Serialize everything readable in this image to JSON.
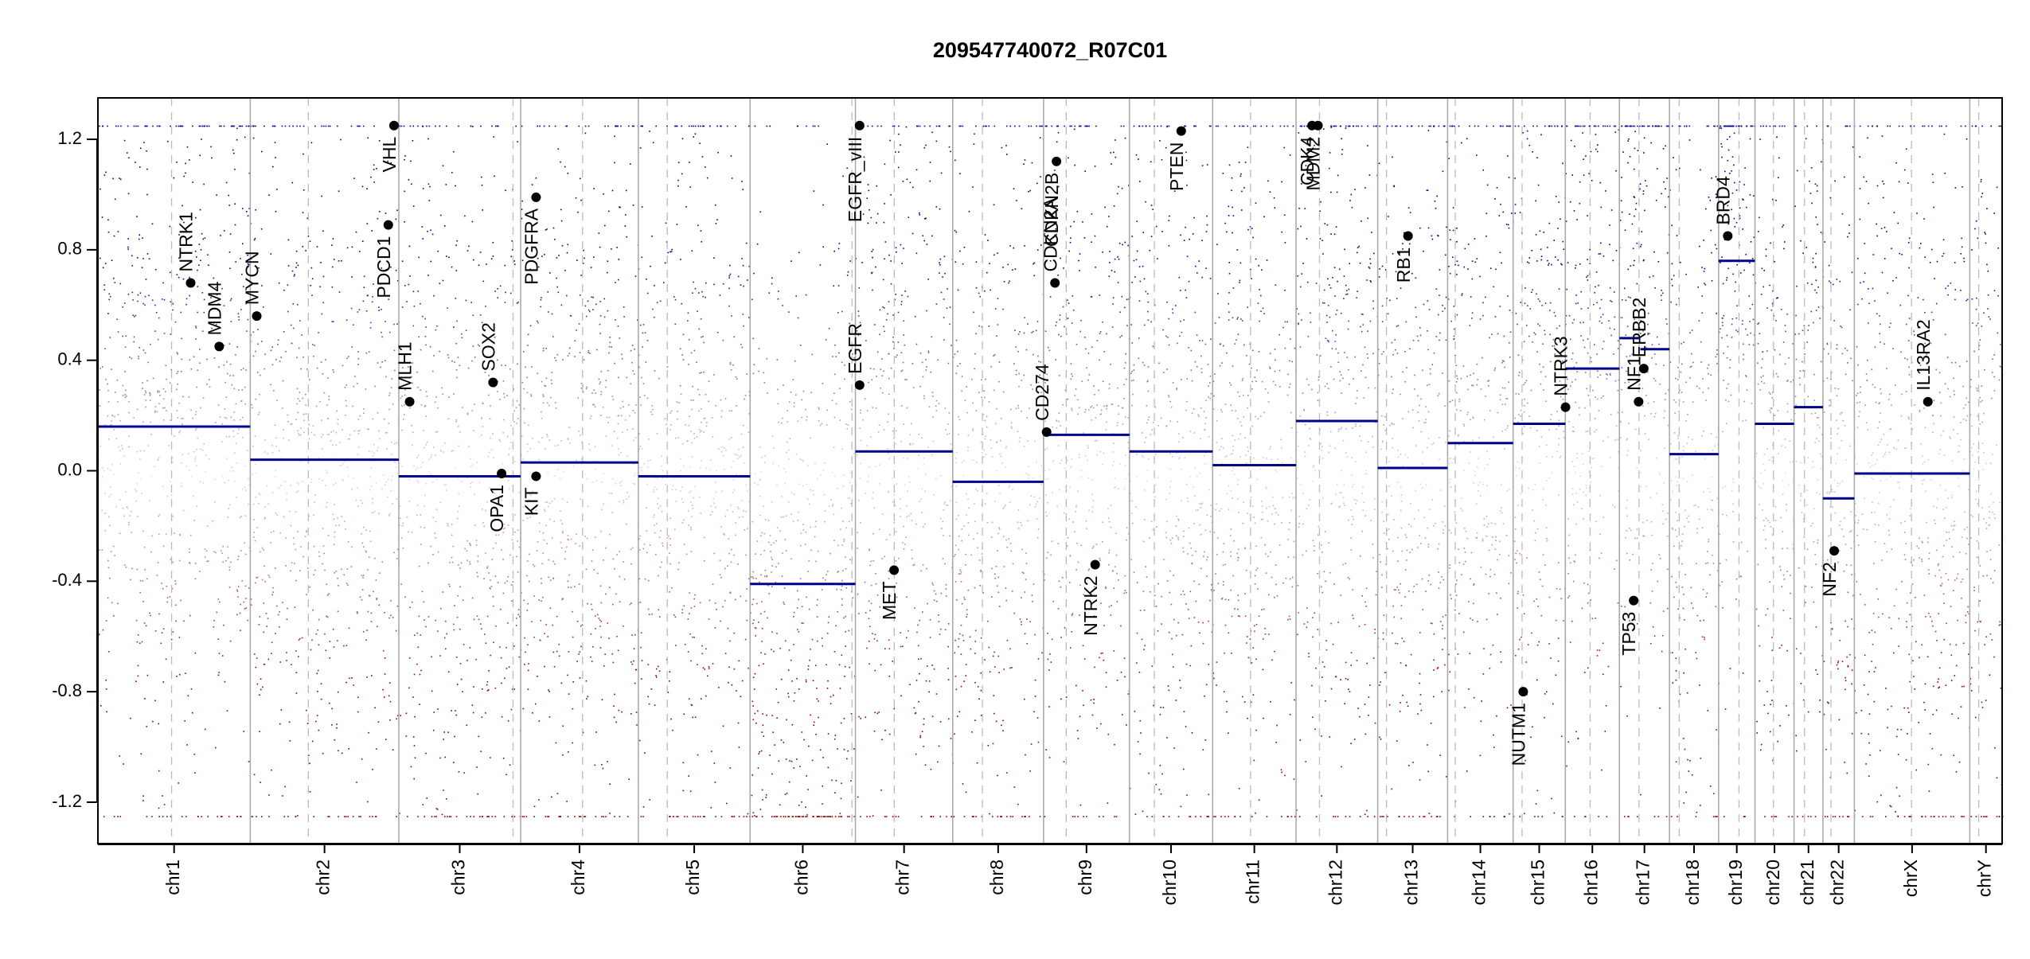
{
  "chart_data": {
    "type": "scatter",
    "title": "209547740072_R07C01",
    "xlabel": "",
    "ylabel": "",
    "ylim": [
      -1.35,
      1.35
    ],
    "yticks": [
      -1.2,
      -0.8,
      -0.4,
      0.0,
      0.4,
      0.8,
      1.2
    ],
    "ytick_labels": [
      "-1.2",
      "-0.8",
      "-0.4",
      "0.0",
      "0.4",
      "0.8",
      "1.2"
    ],
    "xlim": [
      0,
      1
    ],
    "point_clip": [
      -1.25,
      1.25
    ],
    "colors": {
      "gain": "#00008B",
      "loss": "#8B0000",
      "segment": "#00008B",
      "gene_point": "#000000",
      "chrom_boundary": "#AAAAAA",
      "centromere": "#BBBBBB",
      "axis": "#000000"
    },
    "chromosomes": [
      {
        "name": "chr1",
        "start": 0.0,
        "end": 0.08,
        "centromere": 0.0387,
        "segment": 0.16
      },
      {
        "name": "chr2",
        "start": 0.08,
        "end": 0.158,
        "centromere": 0.1105,
        "segment": 0.04
      },
      {
        "name": "chr3",
        "start": 0.158,
        "end": 0.222,
        "centromere": 0.218,
        "segment": -0.02
      },
      {
        "name": "chr4",
        "start": 0.222,
        "end": 0.2838,
        "centromere": 0.2545,
        "segment": 0.03
      },
      {
        "name": "chr5",
        "start": 0.2838,
        "end": 0.3425,
        "centromere": 0.299,
        "segment": -0.02
      },
      {
        "name": "chr6",
        "start": 0.3425,
        "end": 0.3978,
        "centromere": 0.396,
        "segment": -0.41
      },
      {
        "name": "chr7",
        "start": 0.3978,
        "end": 0.4489,
        "centromere": 0.4182,
        "segment": 0.07
      },
      {
        "name": "chr8",
        "start": 0.4489,
        "end": 0.4966,
        "centromere": 0.4645,
        "segment": -0.04
      },
      {
        "name": "chr9",
        "start": 0.4966,
        "end": 0.5417,
        "centromere": 0.5085,
        "segment": 0.13
      },
      {
        "name": "chr10",
        "start": 0.5417,
        "end": 0.5854,
        "centromere": 0.5548,
        "segment": 0.07
      },
      {
        "name": "chr11",
        "start": 0.5854,
        "end": 0.6292,
        "centromere": 0.6053,
        "segment": 0.02
      },
      {
        "name": "chr12",
        "start": 0.6292,
        "end": 0.6721,
        "centromere": 0.6415,
        "segment": 0.18
      },
      {
        "name": "chr13",
        "start": 0.6721,
        "end": 0.7088,
        "centromere": 0.6767,
        "segment": 0.01
      },
      {
        "name": "chr14",
        "start": 0.7088,
        "end": 0.7432,
        "centromere": 0.7128,
        "segment": 0.1
      },
      {
        "name": "chr15",
        "start": 0.7432,
        "end": 0.7706,
        "centromere": 0.7479,
        "segment": 0.17
      },
      {
        "name": "chr16",
        "start": 0.7706,
        "end": 0.799,
        "centromere": 0.7836,
        "segment": 0.37
      },
      {
        "name": "chr17",
        "start": 0.799,
        "end": 0.8253,
        "centromere": 0.8093,
        "segment": 0.47
      },
      {
        "name": "chr18",
        "start": 0.8253,
        "end": 0.8511,
        "centromere": 0.8304,
        "segment": 0.06
      },
      {
        "name": "chr19",
        "start": 0.8511,
        "end": 0.8702,
        "centromere": 0.8618,
        "segment": 0.76
      },
      {
        "name": "chr20",
        "start": 0.8702,
        "end": 0.8907,
        "centromere": 0.8799,
        "segment": 0.17
      },
      {
        "name": "chr21",
        "start": 0.8907,
        "end": 0.9059,
        "centromere": 0.8962,
        "segment": 0.23
      },
      {
        "name": "chr22",
        "start": 0.9059,
        "end": 0.9224,
        "centromere": 0.9101,
        "segment": -0.1
      },
      {
        "name": "chrX",
        "start": 0.9224,
        "end": 0.983,
        "centromere": 0.9524,
        "segment": -0.01
      },
      {
        "name": "chrY",
        "start": 0.983,
        "end": 1.0,
        "centromere": 0.9877,
        "segment": null
      }
    ],
    "segments_extra": [
      {
        "x0": 0.799,
        "x1": 0.81,
        "y": 0.48
      },
      {
        "x0": 0.81,
        "x1": 0.8253,
        "y": 0.44
      }
    ],
    "genes": [
      {
        "name": "NTRK1",
        "x": 0.0487,
        "y": 0.68,
        "label_side": "above"
      },
      {
        "name": "MDM4",
        "x": 0.0637,
        "y": 0.45,
        "label_side": "above"
      },
      {
        "name": "MYCN",
        "x": 0.0834,
        "y": 0.56,
        "label_side": "above"
      },
      {
        "name": "PDCD1",
        "x": 0.1525,
        "y": 0.89,
        "label_side": "below"
      },
      {
        "name": "VHL",
        "x": 0.1555,
        "y": 1.25,
        "label_side": "below"
      },
      {
        "name": "MLH1",
        "x": 0.1637,
        "y": 0.25,
        "label_side": "above"
      },
      {
        "name": "SOX2",
        "x": 0.2075,
        "y": 0.32,
        "label_side": "above"
      },
      {
        "name": "OPA1",
        "x": 0.212,
        "y": -0.01,
        "label_side": "below"
      },
      {
        "name": "PDGFRA",
        "x": 0.2301,
        "y": 0.99,
        "label_side": "below"
      },
      {
        "name": "KIT",
        "x": 0.2301,
        "y": -0.02,
        "label_side": "below"
      },
      {
        "name": "EGFR_vIII",
        "x": 0.4,
        "y": 1.25,
        "label_side": "below"
      },
      {
        "name": "EGFR",
        "x": 0.4,
        "y": 0.31,
        "label_side": "above"
      },
      {
        "name": "MET",
        "x": 0.4181,
        "y": -0.36,
        "label_side": "below"
      },
      {
        "name": "CD274",
        "x": 0.4982,
        "y": 0.14,
        "label_side": "above"
      },
      {
        "name": "CDKN2A",
        "x": 0.5026,
        "y": 0.68,
        "label_side": "above"
      },
      {
        "name": "CDKN2B",
        "x": 0.5034,
        "y": 1.12,
        "label_side": "below"
      },
      {
        "name": "NTRK2",
        "x": 0.5237,
        "y": -0.34,
        "label_side": "below"
      },
      {
        "name": "PTEN",
        "x": 0.5689,
        "y": 1.23,
        "label_side": "below"
      },
      {
        "name": "CDK4",
        "x": 0.6376,
        "y": 1.25,
        "label_side": "below"
      },
      {
        "name": "MDM2",
        "x": 0.6407,
        "y": 1.25,
        "label_side": "below"
      },
      {
        "name": "RB1",
        "x": 0.688,
        "y": 0.85,
        "label_side": "below"
      },
      {
        "name": "NUTM1",
        "x": 0.7485,
        "y": -0.8,
        "label_side": "below"
      },
      {
        "name": "NTRK3",
        "x": 0.7707,
        "y": 0.23,
        "label_side": "above"
      },
      {
        "name": "TP53",
        "x": 0.8065,
        "y": -0.47,
        "label_side": "below"
      },
      {
        "name": "NF1",
        "x": 0.8091,
        "y": 0.25,
        "label_side": "above"
      },
      {
        "name": "ERBB2",
        "x": 0.8118,
        "y": 0.37,
        "label_side": "above"
      },
      {
        "name": "BRD4",
        "x": 0.8559,
        "y": 0.85,
        "label_side": "above"
      },
      {
        "name": "NF2",
        "x": 0.9118,
        "y": -0.29,
        "label_side": "below"
      },
      {
        "name": "IL13RA2",
        "x": 0.961,
        "y": 0.25,
        "label_side": "above"
      }
    ],
    "grid": false,
    "legend": "none"
  }
}
